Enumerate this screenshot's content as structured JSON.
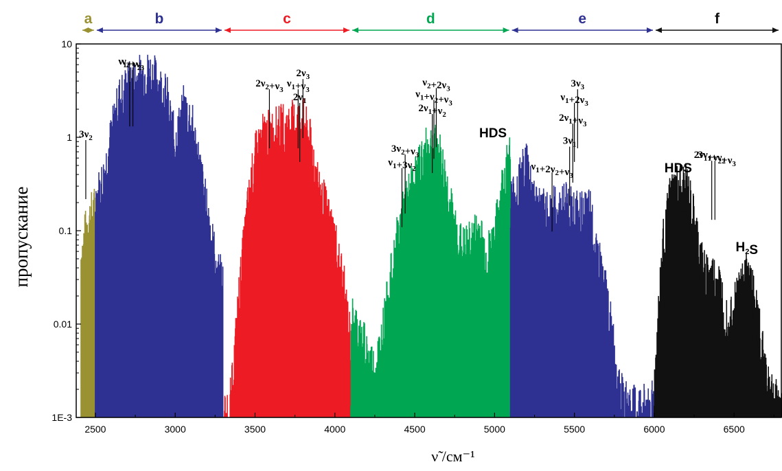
{
  "chart_data": {
    "type": "area",
    "xlabel": "ν̃ /см⁻¹",
    "ylabel": "пропускание",
    "yscale": "log",
    "xlim": [
      2380,
      6800
    ],
    "ylim": [
      0.001,
      10
    ],
    "grid": false,
    "x_ticks": [
      {
        "value": 2500,
        "label": "2500"
      },
      {
        "value": 3000,
        "label": "3000"
      },
      {
        "value": 3500,
        "label": "3500"
      },
      {
        "value": 4000,
        "label": "4000"
      },
      {
        "value": 4500,
        "label": "4500"
      },
      {
        "value": 5000,
        "label": "5000"
      },
      {
        "value": 5500,
        "label": "5500"
      },
      {
        "value": 6000,
        "label": "6000"
      },
      {
        "value": 6500,
        "label": "6500"
      }
    ],
    "y_ticks": [
      {
        "value": 0.001,
        "label": "1E-3"
      },
      {
        "value": 0.01,
        "label": "0.01"
      },
      {
        "value": 0.1,
        "label": "0.1"
      },
      {
        "value": 1,
        "label": "1"
      },
      {
        "value": 10,
        "label": "10"
      }
    ],
    "regions": [
      {
        "letter": "a",
        "from": 2410,
        "to": 2500,
        "color": "#9a9133"
      },
      {
        "letter": "b",
        "from": 2500,
        "to": 3300,
        "color": "#2e3192"
      },
      {
        "letter": "c",
        "from": 3300,
        "to": 4100,
        "color": "#ed1c24"
      },
      {
        "letter": "d",
        "from": 4100,
        "to": 5100,
        "color": "#00a651"
      },
      {
        "letter": "e",
        "from": 5100,
        "to": 6000,
        "color": "#2e3192"
      },
      {
        "letter": "f",
        "from": 6000,
        "to": 6800,
        "color": "#111111"
      }
    ],
    "series": [
      {
        "region": "a",
        "x": [
          2410,
          2430,
          2450,
          2470,
          2490,
          2500
        ],
        "y": [
          0.05,
          0.08,
          0.11,
          0.14,
          0.16,
          0.17
        ]
      },
      {
        "region": "b",
        "x": [
          2500,
          2550,
          2600,
          2650,
          2700,
          2750,
          2800,
          2850,
          2900,
          2950,
          3000,
          3050,
          3100,
          3150,
          3200,
          3250,
          3300
        ],
        "y": [
          0.2,
          0.35,
          1.0,
          2.5,
          3.5,
          4.0,
          4.5,
          4.8,
          3.5,
          2.5,
          0.8,
          2.0,
          1.5,
          0.5,
          0.15,
          0.05,
          0.025
        ]
      },
      {
        "region": "c",
        "x": [
          3300,
          3350,
          3400,
          3450,
          3500,
          3550,
          3600,
          3650,
          3700,
          3750,
          3800,
          3850,
          3900,
          3950,
          4000,
          4050,
          4100
        ],
        "y": [
          0.001,
          0.0015,
          0.02,
          0.15,
          0.6,
          1.0,
          1.1,
          1.2,
          1.3,
          1.4,
          1.5,
          0.8,
          0.3,
          0.15,
          0.08,
          0.03,
          0.006
        ]
      },
      {
        "region": "d",
        "x": [
          4100,
          4150,
          4200,
          4250,
          4300,
          4350,
          4400,
          4450,
          4500,
          4550,
          4600,
          4650,
          4700,
          4750,
          4800,
          4850,
          4900,
          4950,
          5000,
          5050,
          5100
        ],
        "y": [
          0.012,
          0.008,
          0.005,
          0.003,
          0.008,
          0.03,
          0.1,
          0.2,
          0.35,
          0.6,
          0.8,
          0.7,
          0.3,
          0.1,
          0.06,
          0.07,
          0.1,
          0.05,
          0.08,
          0.3,
          0.7
        ]
      },
      {
        "region": "e",
        "x": [
          5100,
          5150,
          5200,
          5250,
          5300,
          5350,
          5400,
          5450,
          5500,
          5550,
          5600,
          5650,
          5700,
          5750,
          5800,
          5850,
          5900,
          5950,
          6000
        ],
        "y": [
          0.2,
          0.3,
          0.55,
          0.2,
          0.15,
          0.18,
          0.15,
          0.2,
          0.15,
          0.14,
          0.15,
          0.05,
          0.02,
          0.005,
          0.0015,
          0.0012,
          0.0012,
          0.0013,
          0.0015
        ]
      },
      {
        "region": "f",
        "x": [
          6000,
          6050,
          6100,
          6150,
          6200,
          6250,
          6300,
          6350,
          6400,
          6450,
          6500,
          6550,
          6600,
          6650,
          6700,
          6750,
          6800
        ],
        "y": [
          0.002,
          0.06,
          0.22,
          0.28,
          0.3,
          0.12,
          0.04,
          0.03,
          0.028,
          0.012,
          0.015,
          0.03,
          0.035,
          0.01,
          0.003,
          0.0015,
          0.0012
        ]
      }
    ],
    "annotations": [
      {
        "text": "ν₁+ν₂",
        "x": 2715,
        "y": 6.0
      },
      {
        "text": "ν₂+ν₃",
        "x": 2735,
        "y": 6.0
      },
      {
        "text": "3ν₂",
        "x": 2440,
        "y": 1.0
      },
      {
        "text": "2ν₂+ν₃",
        "x": 3590,
        "y": 3.5
      },
      {
        "text": "ν₁+ν₃",
        "x": 3770,
        "y": 3.5
      },
      {
        "text": "2ν₁",
        "x": 3780,
        "y": 2.5
      },
      {
        "text": "2ν₃",
        "x": 3800,
        "y": 4.5
      },
      {
        "text": "ν₂+2ν₃",
        "x": 4635,
        "y": 3.6
      },
      {
        "text": "ν₁+ν₂+ν₃",
        "x": 4620,
        "y": 2.7
      },
      {
        "text": "2ν₁+ν₂",
        "x": 4610,
        "y": 1.9
      },
      {
        "text": "3ν₂+ν₃",
        "x": 4440,
        "y": 0.7
      },
      {
        "text": "ν₁+3ν₂",
        "x": 4420,
        "y": 0.5
      },
      {
        "text": "HDS",
        "x": 4990,
        "y": 1.0
      },
      {
        "text": "ν₁+2ν₂+ν₃",
        "x": 5360,
        "y": 0.45
      },
      {
        "text": "3ν₁",
        "x": 5470,
        "y": 0.85
      },
      {
        "text": "2ν₁+ν₃",
        "x": 5490,
        "y": 1.5
      },
      {
        "text": "ν₁+2ν₃",
        "x": 5500,
        "y": 2.5
      },
      {
        "text": "3ν₃",
        "x": 5520,
        "y": 3.5
      },
      {
        "text": "HDS",
        "x": 6150,
        "y": 0.42
      },
      {
        "text": "3ν₁+ν₂",
        "x": 6360,
        "y": 0.6
      },
      {
        "text": "2ν₁+ν₂+ν₃",
        "x": 6380,
        "y": 0.6
      },
      {
        "text": "H₂S",
        "x": 6580,
        "y": 0.06
      }
    ]
  }
}
